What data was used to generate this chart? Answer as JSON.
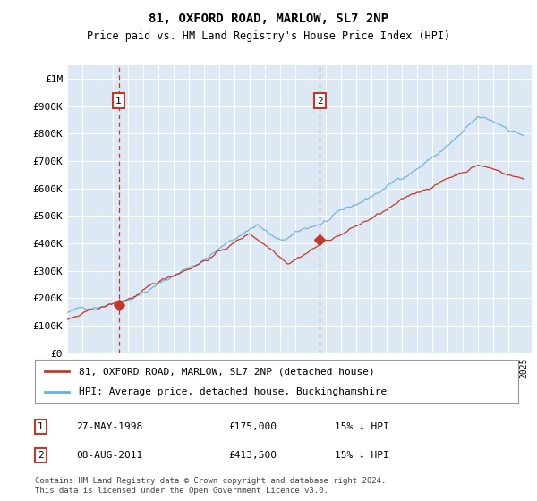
{
  "title": "81, OXFORD ROAD, MARLOW, SL7 2NP",
  "subtitle": "Price paid vs. HM Land Registry's House Price Index (HPI)",
  "yvalues": [
    0,
    100000,
    200000,
    300000,
    400000,
    500000,
    600000,
    700000,
    800000,
    900000,
    1000000
  ],
  "ylim": [
    0,
    1050000
  ],
  "xlim_start": 1995.0,
  "xlim_end": 2025.5,
  "background_color": "#dce9f5",
  "grid_color": "#ffffff",
  "sale1_x": 1998.38,
  "sale1_y": 175000,
  "sale1_label": "1",
  "sale1_date": "27-MAY-1998",
  "sale1_price": "£175,000",
  "sale1_hpi": "15% ↓ HPI",
  "sale2_x": 2011.6,
  "sale2_y": 413500,
  "sale2_label": "2",
  "sale2_date": "08-AUG-2011",
  "sale2_price": "£413,500",
  "sale2_hpi": "15% ↓ HPI",
  "line_color_hpi": "#6baed6",
  "line_color_sale": "#c0392b",
  "legend_label_sale": "81, OXFORD ROAD, MARLOW, SL7 2NP (detached house)",
  "legend_label_hpi": "HPI: Average price, detached house, Buckinghamshire",
  "footnote": "Contains HM Land Registry data © Crown copyright and database right 2024.\nThis data is licensed under the Open Government Licence v3.0.",
  "marker_box_color": "#c0392b",
  "dashed_line_color": "#c0392b"
}
